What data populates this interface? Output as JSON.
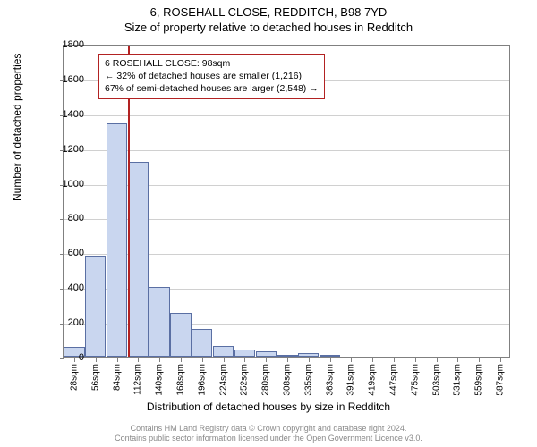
{
  "title": {
    "line1": "6, ROSEHALL CLOSE, REDDITCH, B98 7YD",
    "line2": "Size of property relative to detached houses in Redditch"
  },
  "axes": {
    "ylabel": "Number of detached properties",
    "xlabel": "Distribution of detached houses by size in Redditch",
    "ylim": [
      0,
      1800
    ],
    "ytick_step": 200,
    "label_fontsize": 12
  },
  "chart": {
    "type": "histogram",
    "background_color": "#ffffff",
    "grid_color": "#d0d0d0",
    "border_color": "#808080",
    "bar_fill": "#c9d6ef",
    "bar_stroke": "#5a6fa3",
    "categories": [
      "28sqm",
      "56sqm",
      "84sqm",
      "112sqm",
      "140sqm",
      "168sqm",
      "196sqm",
      "224sqm",
      "252sqm",
      "280sqm",
      "308sqm",
      "335sqm",
      "363sqm",
      "391sqm",
      "419sqm",
      "447sqm",
      "475sqm",
      "503sqm",
      "531sqm",
      "559sqm",
      "587sqm"
    ],
    "values": [
      55,
      580,
      1340,
      1120,
      400,
      250,
      160,
      60,
      40,
      30,
      5,
      20,
      5,
      0,
      0,
      0,
      0,
      0,
      0,
      0,
      0
    ],
    "xtick_fontsize": 10,
    "ytick_fontsize": 11
  },
  "reference": {
    "x_value": 98,
    "x_range": [
      14,
      601
    ],
    "line_color": "#b22222"
  },
  "annotation": {
    "border_color": "#b22222",
    "bg_color": "#ffffff",
    "lines": [
      "6 ROSEHALL CLOSE: 98sqm",
      "← 32% of detached houses are smaller (1,216)",
      "67% of semi-detached houses are larger (2,548) →"
    ]
  },
  "footer": {
    "line1": "Contains HM Land Registry data © Crown copyright and database right 2024.",
    "line2": "Contains public sector information licensed under the Open Government Licence v3.0.",
    "color": "#888888"
  }
}
